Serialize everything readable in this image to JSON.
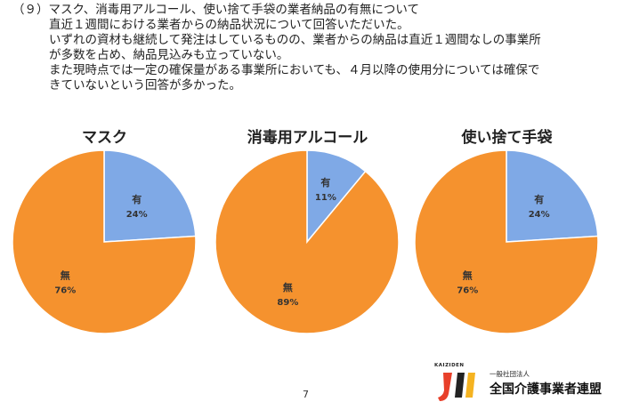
{
  "section": {
    "lines": [
      "（９）マスク、消毒用アルコール、使い捨て手袋の業者納品の有無について",
      "直近１週間における業者からの納品状況について回答いただいた。",
      "いずれの資材も継続して発注はしているものの、業者からの納品は直近１週間なしの事業所",
      "が多数を占め、納品見込みも立っていない。",
      "また現時点では一定の確保量がある事業所においても、４月以降の使用分については確保で",
      "きていないという回答が多かった。"
    ]
  },
  "chart_data": [
    {
      "type": "pie",
      "title": "マスク",
      "labels": [
        "有",
        "無"
      ],
      "values": [
        24,
        76
      ],
      "value_labels": [
        "24%",
        "76%"
      ],
      "colors": [
        "#7fa9e6",
        "#f5922e"
      ]
    },
    {
      "type": "pie",
      "title": "消毒用アルコール",
      "labels": [
        "有",
        "無"
      ],
      "values": [
        11,
        89
      ],
      "value_labels": [
        "11%",
        "89%"
      ],
      "colors": [
        "#7fa9e6",
        "#f5922e"
      ]
    },
    {
      "type": "pie",
      "title": "使い捨て手袋",
      "labels": [
        "有",
        "無"
      ],
      "values": [
        24,
        76
      ],
      "value_labels": [
        "24%",
        "76%"
      ],
      "colors": [
        "#7fa9e6",
        "#f5922e"
      ]
    }
  ],
  "footer": {
    "page_number": "7",
    "logo_tag": "KAIZIDEN",
    "org_type": "一般社団法人",
    "org_name": "全国介護事業者連盟"
  }
}
